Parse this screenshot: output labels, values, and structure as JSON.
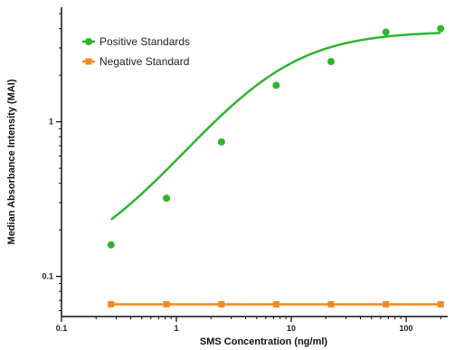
{
  "chart_data": {
    "type": "scatter",
    "xlabel": "SMS Concentration (ng/ml)",
    "ylabel": "Median Absorbance Intensity (MAI)",
    "xscale": "log",
    "yscale": "log",
    "xlim": [
      0.1,
      230
    ],
    "ylim": [
      0.055,
      5.5
    ],
    "x_ticks": [
      0.1,
      1,
      10,
      100
    ],
    "x_tick_labels": [
      "0.1",
      "1",
      "10",
      "100"
    ],
    "y_ticks": [
      0.1,
      1
    ],
    "y_tick_labels": [
      "0.1",
      "1"
    ],
    "grid": false,
    "legend_position": "top-left",
    "series": [
      {
        "name": "Positive Standards",
        "color": "#2db52d",
        "marker": "circle",
        "fit": "sigmoid",
        "x": [
          0.27,
          0.82,
          2.47,
          7.4,
          22.2,
          66.7,
          200
        ],
        "y": [
          0.16,
          0.32,
          0.74,
          1.72,
          2.45,
          3.8,
          4.0
        ]
      },
      {
        "name": "Negative Standard",
        "color": "#f5891f",
        "marker": "square",
        "fit": "line",
        "x": [
          0.27,
          0.82,
          2.47,
          7.4,
          22.2,
          66.7,
          200
        ],
        "y": [
          0.066,
          0.066,
          0.066,
          0.066,
          0.066,
          0.066,
          0.066
        ]
      }
    ]
  }
}
